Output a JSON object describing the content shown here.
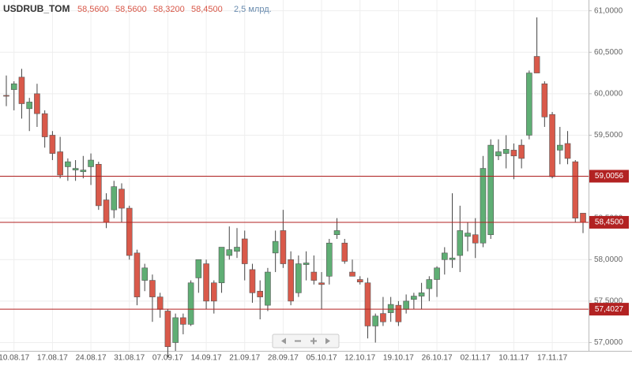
{
  "chart_data": {
    "type": "candlestick",
    "header": {
      "symbol": "USDRUB_TOM",
      "open": "58,5600",
      "high": "58,5600",
      "low": "58,3200",
      "close": "58,4500",
      "volume": "2,5 млрд."
    },
    "categories": [
      null,
      "10.08.17",
      null,
      null,
      null,
      null,
      "17.08.17",
      null,
      null,
      null,
      null,
      "24.08.17",
      null,
      null,
      null,
      null,
      "31.08.17",
      null,
      null,
      null,
      null,
      "07.09.17",
      null,
      null,
      null,
      null,
      "14.09.17",
      null,
      null,
      null,
      null,
      "21.09.17",
      null,
      null,
      null,
      null,
      "28.09.17",
      null,
      null,
      null,
      null,
      "05.10.17",
      null,
      null,
      null,
      null,
      "12.10.17",
      null,
      null,
      null,
      null,
      "19.10.17",
      null,
      null,
      null,
      null,
      "26.10.17",
      null,
      null,
      null,
      null,
      "02.11.17",
      null,
      null,
      null,
      null,
      "10.11.17",
      null,
      null,
      null,
      null,
      "17.11.17",
      null,
      null,
      null,
      null
    ],
    "open": [
      59.98,
      60.05,
      60.2,
      59.82,
      60.0,
      59.76,
      59.5,
      59.3,
      59.12,
      59.08,
      59.06,
      59.12,
      59.15,
      58.72,
      58.6,
      58.85,
      58.62,
      58.08,
      57.75,
      57.75,
      57.55,
      57.38,
      57.0,
      57.3,
      57.22,
      57.78,
      57.95,
      57.72,
      57.72,
      58.05,
      58.1,
      58.25,
      57.88,
      57.62,
      57.45,
      58.08,
      58.35,
      58.0,
      57.6,
      57.94,
      57.85,
      57.72,
      57.8,
      58.3,
      58.2,
      57.85,
      57.76,
      57.72,
      57.2,
      57.35,
      57.36,
      57.45,
      57.4,
      57.52,
      57.56,
      57.65,
      57.76,
      58.0,
      58.0,
      58.05,
      58.28,
      58.3,
      58.2,
      58.3,
      59.25,
      59.28,
      59.32,
      59.38,
      59.5,
      60.45,
      60.12,
      59.75,
      59.32,
      59.4,
      59.18,
      58.56
    ],
    "high": [
      60.22,
      60.15,
      60.3,
      59.95,
      60.12,
      59.8,
      59.55,
      59.48,
      59.22,
      59.2,
      59.25,
      59.28,
      59.18,
      58.8,
      58.95,
      58.92,
      58.65,
      58.12,
      57.95,
      57.82,
      57.6,
      57.4,
      57.35,
      57.35,
      57.75,
      58.0,
      58.0,
      57.75,
      58.15,
      58.4,
      58.38,
      58.35,
      57.95,
      57.75,
      57.9,
      58.35,
      58.6,
      58.1,
      58.05,
      58.1,
      58.05,
      57.85,
      58.25,
      58.5,
      58.25,
      58.0,
      57.8,
      57.78,
      57.35,
      57.55,
      57.55,
      57.5,
      57.58,
      57.6,
      57.72,
      57.8,
      57.92,
      58.15,
      58.8,
      58.65,
      58.45,
      58.5,
      59.25,
      59.45,
      59.45,
      59.5,
      59.4,
      59.45,
      60.28,
      60.92,
      60.15,
      59.78,
      59.6,
      59.55,
      59.2,
      58.56
    ],
    "low": [
      59.85,
      59.8,
      59.7,
      59.55,
      59.6,
      59.35,
      59.2,
      58.98,
      58.95,
      58.95,
      58.98,
      58.9,
      58.6,
      58.38,
      58.5,
      58.45,
      58.0,
      57.45,
      57.62,
      57.25,
      57.3,
      56.82,
      56.9,
      57.1,
      57.2,
      57.6,
      57.4,
      57.35,
      57.6,
      58.0,
      58.02,
      57.75,
      57.48,
      57.28,
      57.38,
      57.85,
      57.9,
      57.45,
      57.55,
      57.75,
      57.7,
      57.4,
      57.7,
      58.25,
      57.95,
      57.8,
      57.7,
      57.05,
      57.0,
      57.2,
      57.25,
      57.2,
      57.35,
      57.4,
      57.4,
      57.5,
      57.55,
      57.82,
      57.9,
      57.85,
      58.1,
      58.02,
      58.15,
      58.25,
      59.2,
      59.1,
      58.97,
      59.1,
      59.45,
      60.25,
      59.6,
      58.98,
      59.15,
      59.15,
      58.45,
      58.32
    ],
    "close": [
      59.97,
      60.12,
      59.88,
      59.9,
      59.76,
      59.48,
      59.28,
      59.02,
      59.18,
      59.1,
      59.08,
      59.2,
      58.65,
      58.45,
      58.88,
      58.62,
      58.05,
      57.55,
      57.9,
      57.55,
      57.4,
      56.95,
      57.3,
      57.22,
      57.72,
      58.0,
      57.5,
      57.5,
      58.15,
      58.12,
      58.15,
      57.95,
      57.6,
      57.55,
      57.85,
      58.22,
      57.95,
      57.5,
      57.95,
      57.96,
      57.75,
      57.7,
      58.2,
      58.35,
      57.98,
      57.8,
      57.73,
      57.2,
      57.32,
      57.25,
      57.46,
      57.25,
      57.5,
      57.56,
      57.6,
      57.76,
      57.9,
      58.08,
      58.02,
      58.35,
      58.32,
      58.2,
      59.1,
      59.38,
      59.3,
      59.33,
      59.25,
      59.22,
      60.25,
      60.25,
      59.72,
      59.0,
      59.38,
      59.22,
      58.5,
      58.45
    ],
    "up_color": "#5fae74",
    "down_color": "#d9594a",
    "ylim": [
      56.9,
      61.13
    ],
    "yticks": [
      {
        "value": 57,
        "label": "57,0000"
      },
      {
        "value": 57.5,
        "label": "57,5000"
      },
      {
        "value": 58,
        "label": "58,0000"
      },
      {
        "value": 58.5,
        "label": "58,5000"
      },
      {
        "value": 59,
        "label": "59,0000"
      },
      {
        "value": 59.5,
        "label": "59,5000"
      },
      {
        "value": 60,
        "label": "60,0000"
      },
      {
        "value": 60.5,
        "label": "60,5000"
      },
      {
        "value": 61,
        "label": "61,0000"
      }
    ],
    "grid": true,
    "hlines": [
      {
        "value": 59.0056,
        "label": "59,0056"
      },
      {
        "value": 58.45,
        "label": "58,4500"
      },
      {
        "value": 57.4027,
        "label": "57,4027"
      }
    ],
    "hline_color": "#b22222"
  }
}
